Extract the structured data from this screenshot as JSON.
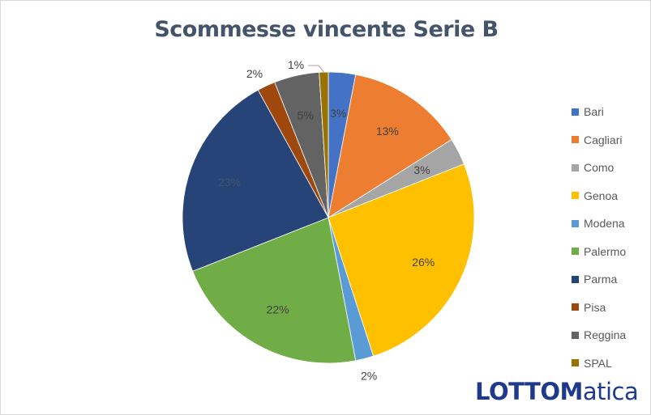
{
  "chart_data": {
    "type": "pie",
    "title": "Scommesse vincente Serie B",
    "categories": [
      "Bari",
      "Cagliari",
      "Como",
      "Genoa",
      "Modena",
      "Palermo",
      "Parma",
      "Pisa",
      "Reggina",
      "SPAL"
    ],
    "values": [
      3,
      13,
      3,
      26,
      2,
      22,
      23,
      2,
      5,
      1
    ],
    "labels": [
      "3%",
      "13%",
      "3%",
      "26%",
      "2%",
      "22%",
      "23%",
      "2%",
      "5%",
      "1%"
    ],
    "colors": [
      "#4472C4",
      "#ED7D31",
      "#A5A5A5",
      "#FFC000",
      "#5B9BD5",
      "#70AD47",
      "#264478",
      "#9E480E",
      "#636363",
      "#997300"
    ],
    "legend_position": "right"
  },
  "logo": {
    "part1": "LOTTOM",
    "part2": "atica",
    "text": "LOTTOMatica"
  }
}
